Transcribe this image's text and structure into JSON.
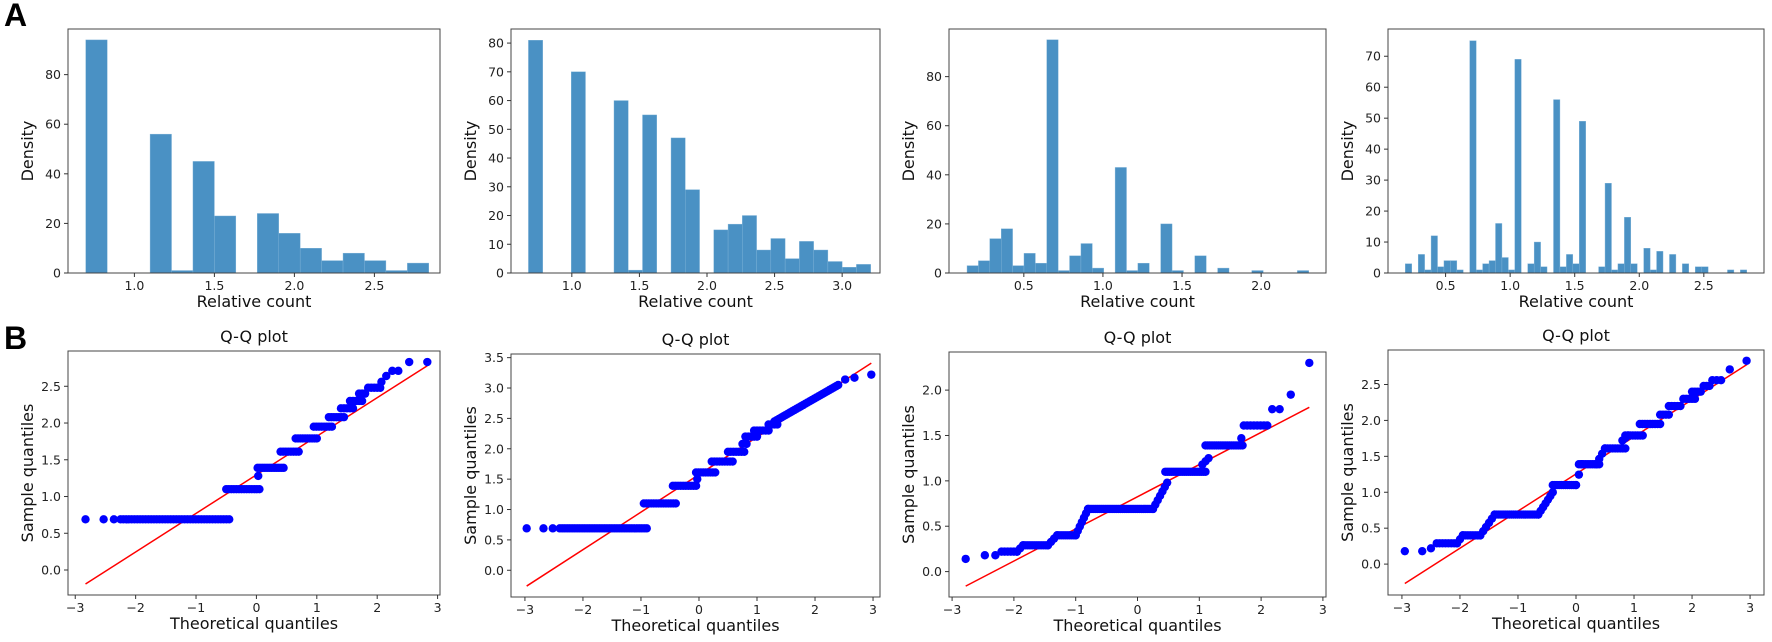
{
  "panel_labels": {
    "A": "A",
    "B": "B"
  },
  "colors": {
    "bar": "#4a91c4",
    "point": "#0000ff",
    "line": "#ff0000",
    "frame": "#444444"
  },
  "chart_data": [
    {
      "type": "bar",
      "subtype": "histogram",
      "row": "A",
      "xlabel": "Relative count",
      "ylabel": "Density",
      "bin_start": 0.696,
      "bin_width": 0.134,
      "values": [
        94,
        0,
        0,
        56,
        1,
        45,
        23,
        0,
        24,
        16,
        10,
        5,
        8,
        5,
        1,
        4
      ],
      "xlim": [
        0.585,
        2.91
      ],
      "ylim": [
        0,
        98.4
      ],
      "xticks": [
        1.0,
        1.5,
        2.0,
        2.5
      ],
      "xtick_labels": [
        "1.0",
        "1.5",
        "2.0",
        "2.5"
      ],
      "yticks": [
        0,
        20,
        40,
        60,
        80
      ],
      "ytick_labels": [
        "0",
        "20",
        "40",
        "60",
        "80"
      ]
    },
    {
      "type": "bar",
      "subtype": "histogram",
      "row": "A",
      "xlabel": "Relative count",
      "ylabel": "Density",
      "bin_start": 0.679,
      "bin_width": 0.1055,
      "values": [
        81,
        0,
        0,
        70,
        0,
        0,
        60,
        1,
        55,
        0,
        47,
        29,
        0,
        15,
        17,
        20,
        8,
        12,
        5,
        11,
        8,
        4,
        2,
        3
      ],
      "xlim": [
        0.55,
        3.28
      ],
      "ylim": [
        0,
        84.9
      ],
      "xticks": [
        1.0,
        1.5,
        2.0,
        2.5,
        3.0
      ],
      "xtick_labels": [
        "1.0",
        "1.5",
        "2.0",
        "2.5",
        "3.0"
      ],
      "yticks": [
        0,
        10,
        20,
        30,
        40,
        50,
        60,
        70,
        80
      ],
      "ytick_labels": [
        "0",
        "10",
        "20",
        "30",
        "40",
        "50",
        "60",
        "70",
        "80"
      ]
    },
    {
      "type": "bar",
      "subtype": "histogram",
      "row": "A",
      "xlabel": "Relative count",
      "ylabel": "Density",
      "bin_start": 0.141,
      "bin_width": 0.072,
      "values": [
        3,
        5,
        14,
        18,
        3,
        8,
        4,
        95,
        1,
        7,
        12,
        2,
        0,
        43,
        1,
        4,
        0,
        20,
        1,
        0,
        7,
        0,
        2,
        0,
        0,
        1,
        0,
        0,
        0,
        1
      ],
      "xlim": [
        0.027,
        2.41
      ],
      "ylim": [
        0,
        99.4
      ],
      "xticks": [
        0.5,
        1.0,
        1.5,
        2.0
      ],
      "xtick_labels": [
        "0.5",
        "1.0",
        "1.5",
        "2.0"
      ],
      "yticks": [
        0,
        20,
        40,
        60,
        80
      ],
      "ytick_labels": [
        "0",
        "20",
        "40",
        "60",
        "80"
      ]
    },
    {
      "type": "bar",
      "subtype": "histogram",
      "row": "A",
      "xlabel": "Relative count",
      "ylabel": "Density",
      "bin_start": 0.188,
      "bin_width": 0.0499,
      "values": [
        3,
        0,
        6,
        1,
        12,
        2,
        4,
        4,
        1,
        0,
        75,
        1,
        3,
        4,
        16,
        5,
        1,
        69,
        0,
        3,
        10,
        2,
        0,
        56,
        2,
        6,
        3,
        49,
        0,
        0,
        2,
        29,
        1,
        3,
        18,
        3,
        0,
        8,
        1,
        7,
        0,
        6,
        0,
        3,
        0,
        2,
        2,
        0,
        0,
        0,
        1,
        0,
        1
      ],
      "xlim": [
        0.054,
        2.966
      ],
      "ylim": [
        0,
        78.8
      ],
      "xticks": [
        0.5,
        1.0,
        1.5,
        2.0,
        2.5
      ],
      "xtick_labels": [
        "0.5",
        "1.0",
        "1.5",
        "2.0",
        "2.5"
      ],
      "yticks": [
        0,
        10,
        20,
        30,
        40,
        50,
        60,
        70
      ],
      "ytick_labels": [
        "0",
        "10",
        "20",
        "30",
        "40",
        "50",
        "60",
        "70"
      ]
    },
    {
      "type": "scatter",
      "subtype": "qq",
      "row": "B",
      "title": "Q-Q plot",
      "xlabel": "Theoretical quantiles",
      "ylabel": "Sample quantiles",
      "xlim": [
        -3.12,
        3.04
      ],
      "ylim": [
        -0.34,
        2.98
      ],
      "xticks": [
        -3,
        -2,
        -1,
        0,
        1,
        2,
        3
      ],
      "xtick_labels": [
        "−3",
        "−2",
        "−1",
        "0",
        "1",
        "2",
        "3"
      ],
      "yticks": [
        0,
        0.5,
        1,
        1.5,
        2,
        2.5
      ],
      "ytick_labels": [
        "0.0",
        "0.5",
        "1.0",
        "1.5",
        "2.0",
        "2.5"
      ],
      "reference_line": [
        [
          -2.83,
          -0.19
        ],
        [
          2.83,
          2.78
        ]
      ],
      "point_segments": [
        [
          -2.83,
          -2.83,
          0.69,
          0.69,
          1
        ],
        [
          -2.53,
          -2.53,
          0.69,
          0.69,
          1
        ],
        [
          -2.36,
          -2.36,
          0.69,
          0.69,
          1
        ],
        [
          -2.25,
          -0.45,
          0.69,
          0.69,
          40
        ],
        [
          -0.5,
          0.05,
          1.1,
          1.1,
          14
        ],
        [
          0.03,
          0.03,
          1.28,
          1.28,
          1
        ],
        [
          0.02,
          0.45,
          1.39,
          1.39,
          12
        ],
        [
          0.4,
          0.7,
          1.61,
          1.61,
          8
        ],
        [
          0.65,
          1.0,
          1.79,
          1.79,
          10
        ],
        [
          0.95,
          1.25,
          1.95,
          1.95,
          8
        ],
        [
          1.2,
          1.45,
          2.08,
          2.08,
          7
        ],
        [
          1.4,
          1.6,
          2.2,
          2.2,
          5
        ],
        [
          1.55,
          1.75,
          2.3,
          2.3,
          5
        ],
        [
          1.7,
          1.8,
          2.4,
          2.4,
          3
        ],
        [
          1.85,
          2.05,
          2.48,
          2.48,
          5
        ],
        [
          2.07,
          2.07,
          2.56,
          2.56,
          1
        ],
        [
          2.15,
          2.15,
          2.64,
          2.64,
          1
        ],
        [
          2.25,
          2.35,
          2.71,
          2.71,
          2
        ],
        [
          2.53,
          2.83,
          2.83,
          2.83,
          2
        ]
      ]
    },
    {
      "type": "scatter",
      "subtype": "qq",
      "row": "B",
      "title": "Q-Q plot",
      "xlabel": "Theoretical quantiles",
      "ylabel": "Sample quantiles",
      "xlim": [
        -3.24,
        3.12
      ],
      "ylim": [
        -0.44,
        3.56
      ],
      "xticks": [
        -3,
        -2,
        -1,
        0,
        1,
        2,
        3
      ],
      "xtick_labels": [
        "−3",
        "−2",
        "−1",
        "0",
        "1",
        "2",
        "3"
      ],
      "yticks": [
        0,
        0.5,
        1,
        1.5,
        2,
        2.5,
        3,
        3.5
      ],
      "ytick_labels": [
        "0.0",
        "0.5",
        "1.0",
        "1.5",
        "2.0",
        "2.5",
        "3.0",
        "3.5"
      ],
      "reference_line": [
        [
          -2.97,
          -0.26
        ],
        [
          2.97,
          3.41
        ]
      ],
      "point_segments": [
        [
          -2.97,
          -2.97,
          0.69,
          0.69,
          1
        ],
        [
          -2.68,
          -2.68,
          0.69,
          0.69,
          1
        ],
        [
          -2.52,
          -2.52,
          0.69,
          0.69,
          1
        ],
        [
          -2.4,
          -0.9,
          0.69,
          0.69,
          36
        ],
        [
          -0.95,
          -0.4,
          1.1,
          1.1,
          14
        ],
        [
          -0.45,
          -0.05,
          1.39,
          1.39,
          10
        ],
        [
          -0.03,
          -0.03,
          1.5,
          1.5,
          1
        ],
        [
          -0.05,
          0.28,
          1.61,
          1.61,
          9
        ],
        [
          0.22,
          0.58,
          1.79,
          1.79,
          9
        ],
        [
          0.5,
          0.78,
          1.95,
          1.95,
          7
        ],
        [
          0.75,
          0.82,
          2.08,
          2.08,
          2
        ],
        [
          0.8,
          1.0,
          2.2,
          2.2,
          5
        ],
        [
          0.95,
          1.2,
          2.3,
          2.3,
          6
        ],
        [
          1.2,
          1.35,
          2.4,
          2.4,
          4
        ],
        [
          1.3,
          2.4,
          2.45,
          3.05,
          30
        ],
        [
          2.52,
          2.52,
          3.14,
          3.14,
          1
        ],
        [
          2.68,
          2.68,
          3.17,
          3.17,
          1
        ],
        [
          2.97,
          2.97,
          3.22,
          3.22,
          1
        ]
      ]
    },
    {
      "type": "scatter",
      "subtype": "qq",
      "row": "B",
      "title": "Q-Q plot",
      "xlabel": "Theoretical quantiles",
      "ylabel": "Sample quantiles",
      "xlim": [
        -3.05,
        3.05
      ],
      "ylim": [
        -0.28,
        2.42
      ],
      "xticks": [
        -3,
        -2,
        -1,
        0,
        1,
        2,
        3
      ],
      "xtick_labels": [
        "−3",
        "−2",
        "−1",
        "0",
        "1",
        "2",
        "3"
      ],
      "yticks": [
        0,
        0.5,
        1,
        1.5,
        2
      ],
      "ytick_labels": [
        "0.0",
        "0.5",
        "1.0",
        "1.5",
        "2.0"
      ],
      "reference_line": [
        [
          -2.78,
          -0.16
        ],
        [
          2.78,
          1.81
        ]
      ],
      "point_segments": [
        [
          -2.78,
          -2.78,
          0.14,
          0.14,
          1
        ],
        [
          -2.47,
          -2.47,
          0.18,
          0.18,
          1
        ],
        [
          -2.3,
          -2.3,
          0.18,
          0.18,
          1
        ],
        [
          -2.2,
          -1.95,
          0.22,
          0.22,
          6
        ],
        [
          -1.95,
          -1.85,
          0.22,
          0.29,
          3
        ],
        [
          -1.85,
          -1.45,
          0.29,
          0.29,
          12
        ],
        [
          -1.45,
          -1.3,
          0.29,
          0.4,
          4
        ],
        [
          -1.3,
          -1.0,
          0.4,
          0.4,
          10
        ],
        [
          -1.0,
          -0.8,
          0.4,
          0.69,
          7
        ],
        [
          -0.8,
          0.25,
          0.69,
          0.69,
          35
        ],
        [
          0.25,
          0.48,
          0.69,
          0.98,
          7
        ],
        [
          0.45,
          1.1,
          1.1,
          1.1,
          20
        ],
        [
          1.05,
          1.15,
          1.18,
          1.25,
          3
        ],
        [
          1.1,
          1.7,
          1.39,
          1.39,
          18
        ],
        [
          1.68,
          1.68,
          1.47,
          1.47,
          1
        ],
        [
          1.72,
          2.1,
          1.61,
          1.61,
          8
        ],
        [
          2.18,
          2.3,
          1.79,
          1.79,
          2
        ],
        [
          2.48,
          2.48,
          1.95,
          1.95,
          1
        ],
        [
          2.78,
          2.78,
          2.3,
          2.3,
          1
        ]
      ]
    },
    {
      "type": "scatter",
      "subtype": "qq",
      "row": "B",
      "title": "Q-Q plot",
      "xlabel": "Theoretical quantiles",
      "ylabel": "Sample quantiles",
      "xlim": [
        -3.24,
        3.24
      ],
      "ylim": [
        -0.43,
        2.98
      ],
      "xticks": [
        -3,
        -2,
        -1,
        0,
        1,
        2,
        3
      ],
      "xtick_labels": [
        "−3",
        "−2",
        "−1",
        "0",
        "1",
        "2",
        "3"
      ],
      "yticks": [
        0,
        0.5,
        1,
        1.5,
        2,
        2.5
      ],
      "ytick_labels": [
        "0.0",
        "0.5",
        "1.0",
        "1.5",
        "2.0",
        "2.5"
      ],
      "reference_line": [
        [
          -2.95,
          -0.27
        ],
        [
          2.95,
          2.78
        ]
      ],
      "point_segments": [
        [
          -2.95,
          -2.65,
          0.18,
          0.18,
          2
        ],
        [
          -2.5,
          -2.5,
          0.22,
          0.22,
          1
        ],
        [
          -2.4,
          -2.05,
          0.29,
          0.29,
          8
        ],
        [
          -2.05,
          -1.95,
          0.29,
          0.4,
          3
        ],
        [
          -1.95,
          -1.65,
          0.4,
          0.4,
          8
        ],
        [
          -1.65,
          -1.4,
          0.4,
          0.69,
          6
        ],
        [
          -1.4,
          -0.65,
          0.69,
          0.69,
          22
        ],
        [
          -0.65,
          -0.4,
          0.69,
          1.0,
          7
        ],
        [
          -0.4,
          0.0,
          1.1,
          1.1,
          12
        ],
        [
          0.0,
          0.1,
          1.1,
          1.39,
          3
        ],
        [
          0.05,
          0.4,
          1.39,
          1.39,
          10
        ],
        [
          0.35,
          0.5,
          1.39,
          1.61,
          4
        ],
        [
          0.5,
          0.85,
          1.61,
          1.61,
          9
        ],
        [
          0.8,
          0.9,
          1.72,
          1.79,
          3
        ],
        [
          0.85,
          1.15,
          1.79,
          1.79,
          8
        ],
        [
          1.1,
          1.45,
          1.95,
          1.95,
          9
        ],
        [
          1.45,
          1.6,
          2.08,
          2.08,
          4
        ],
        [
          1.6,
          1.8,
          2.2,
          2.2,
          5
        ],
        [
          1.85,
          2.05,
          2.3,
          2.3,
          5
        ],
        [
          2.0,
          2.15,
          2.4,
          2.4,
          4
        ],
        [
          2.2,
          2.3,
          2.48,
          2.48,
          3
        ],
        [
          2.35,
          2.5,
          2.56,
          2.56,
          3
        ],
        [
          2.65,
          2.65,
          2.71,
          2.71,
          1
        ],
        [
          2.94,
          2.94,
          2.83,
          2.83,
          1
        ]
      ]
    }
  ]
}
